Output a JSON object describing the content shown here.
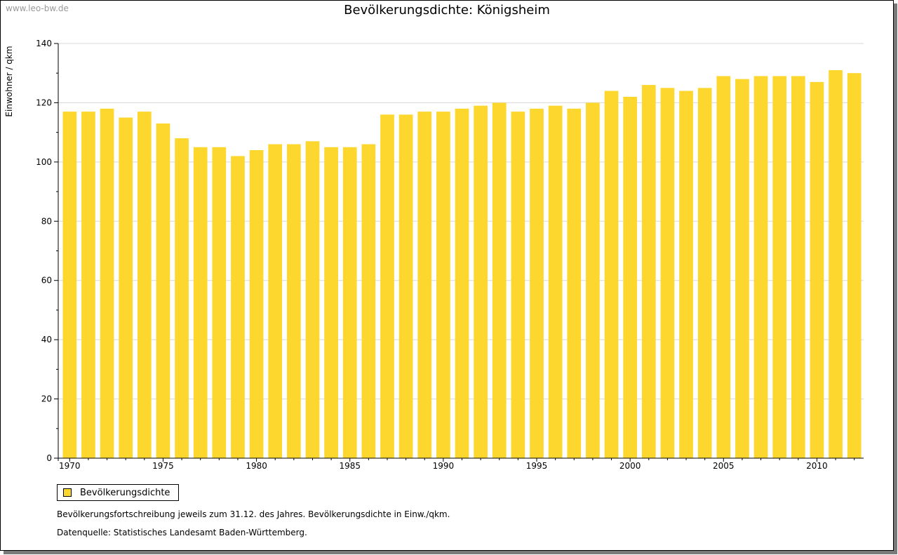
{
  "watermark": "www.leo-bw.de",
  "colors": {
    "bar": "#fdd72e",
    "grid": "#d8d8d8",
    "axis": "#000000"
  },
  "chart_data": {
    "type": "bar",
    "title": "Bevölkerungsdichte: Königsheim",
    "xlabel": "",
    "ylabel": "Einwohner / qkm",
    "ylim": [
      0,
      140
    ],
    "yticks": [
      0,
      20,
      40,
      60,
      80,
      100,
      120,
      140
    ],
    "xtick_labels": [
      "1970",
      "1975",
      "1980",
      "1985",
      "1990",
      "1995",
      "2000",
      "2005",
      "2010"
    ],
    "categories": [
      "1970",
      "1971",
      "1972",
      "1973",
      "1974",
      "1975",
      "1976",
      "1977",
      "1978",
      "1979",
      "1980",
      "1981",
      "1982",
      "1983",
      "1984",
      "1985",
      "1986",
      "1987",
      "1988",
      "1989",
      "1990",
      "1991",
      "1992",
      "1993",
      "1994",
      "1995",
      "1996",
      "1997",
      "1998",
      "1999",
      "2000",
      "2001",
      "2002",
      "2003",
      "2004",
      "2005",
      "2006",
      "2007",
      "2008",
      "2009",
      "2010",
      "2011",
      "2012"
    ],
    "series": [
      {
        "name": "Bevölkerungsdichte",
        "values": [
          117,
          117,
          118,
          115,
          117,
          113,
          108,
          105,
          105,
          102,
          104,
          106,
          106,
          107,
          105,
          105,
          106,
          116,
          116,
          117,
          117,
          118,
          119,
          120,
          117,
          118,
          119,
          118,
          120,
          124,
          122,
          126,
          125,
          124,
          125,
          129,
          128,
          129,
          129,
          129,
          127,
          131,
          130
        ]
      }
    ],
    "grid": true,
    "legend_position": "bottom-left"
  },
  "notes": [
    "Bevölkerungsfortschreibung jeweils zum 31.12. des Jahres. Bevölkerungsdichte in Einw./qkm.",
    "Datenquelle: Statistisches Landesamt Baden-Württemberg."
  ]
}
